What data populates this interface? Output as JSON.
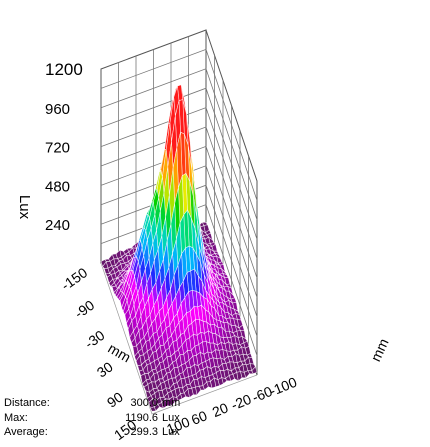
{
  "chart_data": {
    "type": "surface3d",
    "title": "",
    "zlabel": "Lux",
    "xlabel": "mm",
    "ylabel": "mm",
    "zlim": [
      0,
      1200
    ],
    "z_ticks": [
      "240",
      "480",
      "720",
      "960",
      "1200"
    ],
    "x_ticks": [
      "-150",
      "-90",
      "-30",
      "30",
      "90",
      "150"
    ],
    "y_ticks": [
      "-100",
      "-60",
      "-20",
      "20",
      "60",
      "100"
    ],
    "xlim": [
      -150,
      150
    ],
    "ylim": [
      -100,
      100
    ],
    "grid": true,
    "peak": {
      "x": -10,
      "y": -5,
      "z": 1190.6
    },
    "colormap": [
      "#5a1a5c",
      "#b400c8",
      "#ff00ff",
      "#2222ff",
      "#00b4ff",
      "#00e0a0",
      "#00d000",
      "#ffee00",
      "#ff7a00",
      "#ff1a1a"
    ]
  },
  "info": [
    {
      "label": "Distance:",
      "value": "300.0",
      "unit": "mm"
    },
    {
      "label": "Max:",
      "value": "1190.6",
      "unit": "Lux"
    },
    {
      "label": "Average:",
      "value": "299.3",
      "unit": "Lux"
    }
  ]
}
